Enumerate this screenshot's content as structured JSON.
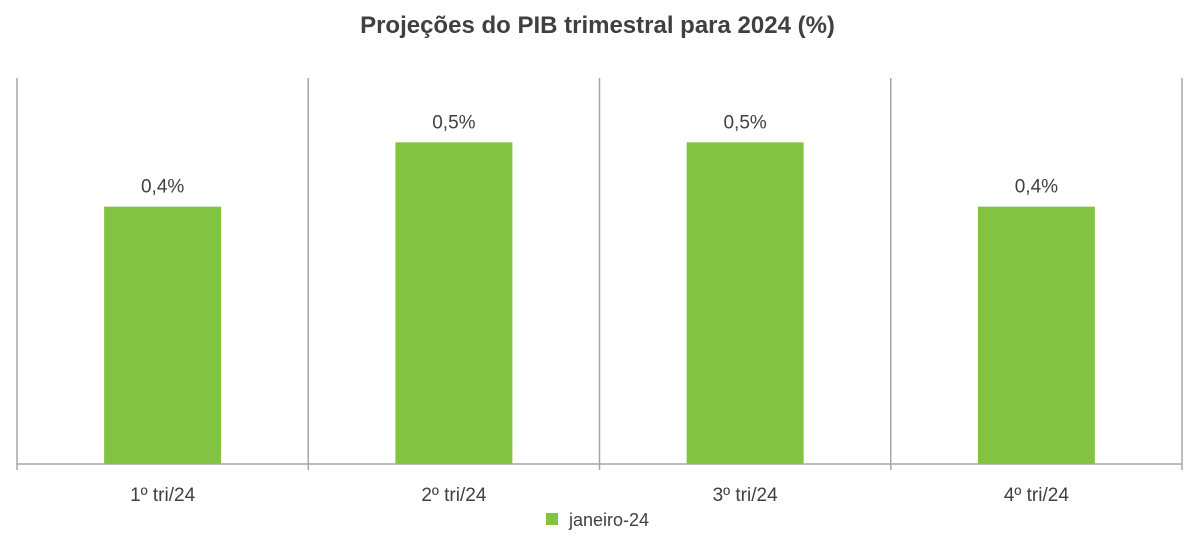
{
  "chart_data": {
    "type": "bar",
    "title": "Projeções do PIB trimestral para 2024 (%)",
    "categories": [
      "1º tri/24",
      "2º tri/24",
      "3º tri/24",
      "4º tri/24"
    ],
    "series": [
      {
        "name": "janeiro-24",
        "values": [
          0.4,
          0.5,
          0.5,
          0.4
        ],
        "labels": [
          "0,4%",
          "0,5%",
          "0,5%",
          "0,4%"
        ],
        "color": "#82C341"
      }
    ],
    "ylim": [
      0,
      0.6
    ],
    "grid": false,
    "category_separators": true,
    "legend_position": "bottom",
    "axis_color": "#A6A6A6"
  }
}
